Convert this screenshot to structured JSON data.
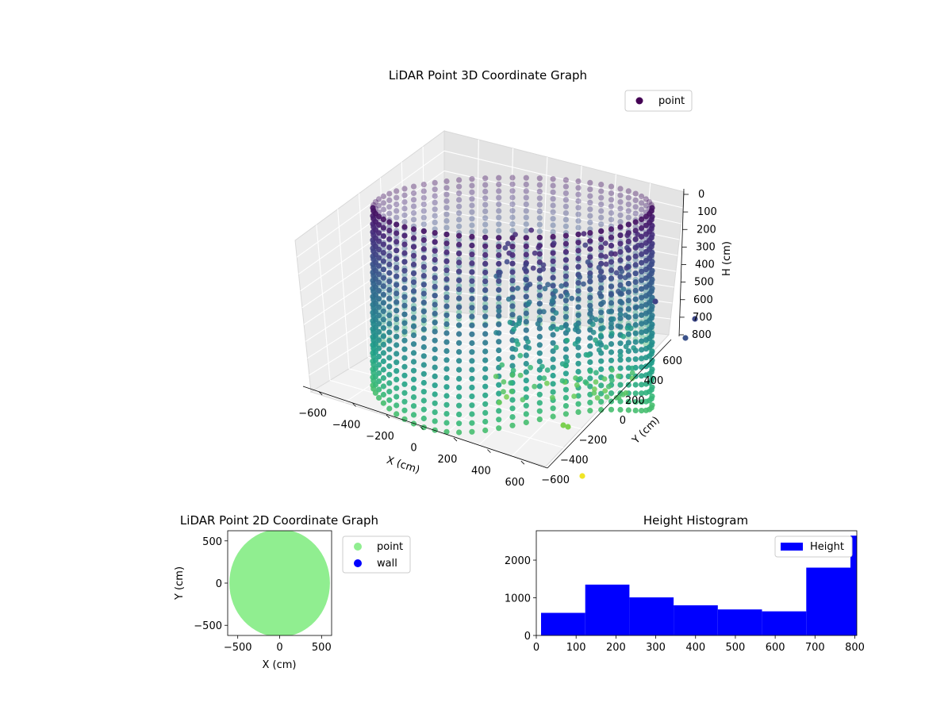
{
  "chart_data": [
    {
      "type": "scatter",
      "projection": "3d",
      "title": "LiDAR Point 3D Coordinate Graph",
      "xlabel": "X (cm)",
      "ylabel": "Y (cm)",
      "zlabel": "H (cm)",
      "xticks": [
        "−600",
        "−400",
        "−200",
        "0",
        "200",
        "400",
        "600"
      ],
      "yticks": [
        "−600",
        "−400",
        "−200",
        "0",
        "200",
        "400",
        "600"
      ],
      "zticks": [
        "0",
        "100",
        "200",
        "300",
        "400",
        "500",
        "600",
        "700",
        "800"
      ],
      "xlim": [
        -650,
        650
      ],
      "ylim": [
        -650,
        650
      ],
      "zlim": [
        0,
        800
      ],
      "z_axis_inverted": true,
      "colormap": "viridis",
      "legend": {
        "entries": [
          "point"
        ],
        "placement": "top-right"
      },
      "description_series": {
        "name": "point",
        "shape": "cylindrical wall of vertical point columns, radius ~600 cm, heights 0–800 cm, plus a cluster of scattered interior points"
      }
    },
    {
      "type": "scatter",
      "title": "LiDAR Point 2D Coordinate Graph",
      "xlabel": "X (cm)",
      "ylabel": "Y (cm)",
      "xticks": [
        "−500",
        "0",
        "500"
      ],
      "yticks": [
        "−500",
        "0",
        "500"
      ],
      "xlim": [
        -620,
        620
      ],
      "ylim": [
        -620,
        620
      ],
      "legend": {
        "entries": [
          "point",
          "wall"
        ],
        "placement": "outside-right"
      },
      "series": [
        {
          "name": "point",
          "color": "#90ee90",
          "shape": "filled disc of radius ~600 cm"
        },
        {
          "name": "wall",
          "color": "#0000ff"
        }
      ]
    },
    {
      "type": "bar",
      "subtype": "histogram",
      "title": "Height Histogram",
      "xticks": [
        "0",
        "100",
        "200",
        "300",
        "400",
        "500",
        "600",
        "700",
        "800"
      ],
      "yticks": [
        "0",
        "1000",
        "2000"
      ],
      "xlim": [
        0,
        805
      ],
      "ylim": [
        0,
        2780
      ],
      "color": "#0000ff",
      "legend": {
        "entries": [
          "Height"
        ],
        "placement": "top-right"
      },
      "bins": [
        {
          "start": 12,
          "end": 123,
          "count": 600
        },
        {
          "start": 123,
          "end": 234,
          "count": 1350
        },
        {
          "start": 234,
          "end": 345,
          "count": 1010
        },
        {
          "start": 345,
          "end": 456,
          "count": 800
        },
        {
          "start": 456,
          "end": 567,
          "count": 690
        },
        {
          "start": 567,
          "end": 678,
          "count": 640
        },
        {
          "start": 678,
          "end": 789,
          "count": 1800
        },
        {
          "start": 789,
          "end": 805,
          "count": 2650
        }
      ]
    }
  ]
}
